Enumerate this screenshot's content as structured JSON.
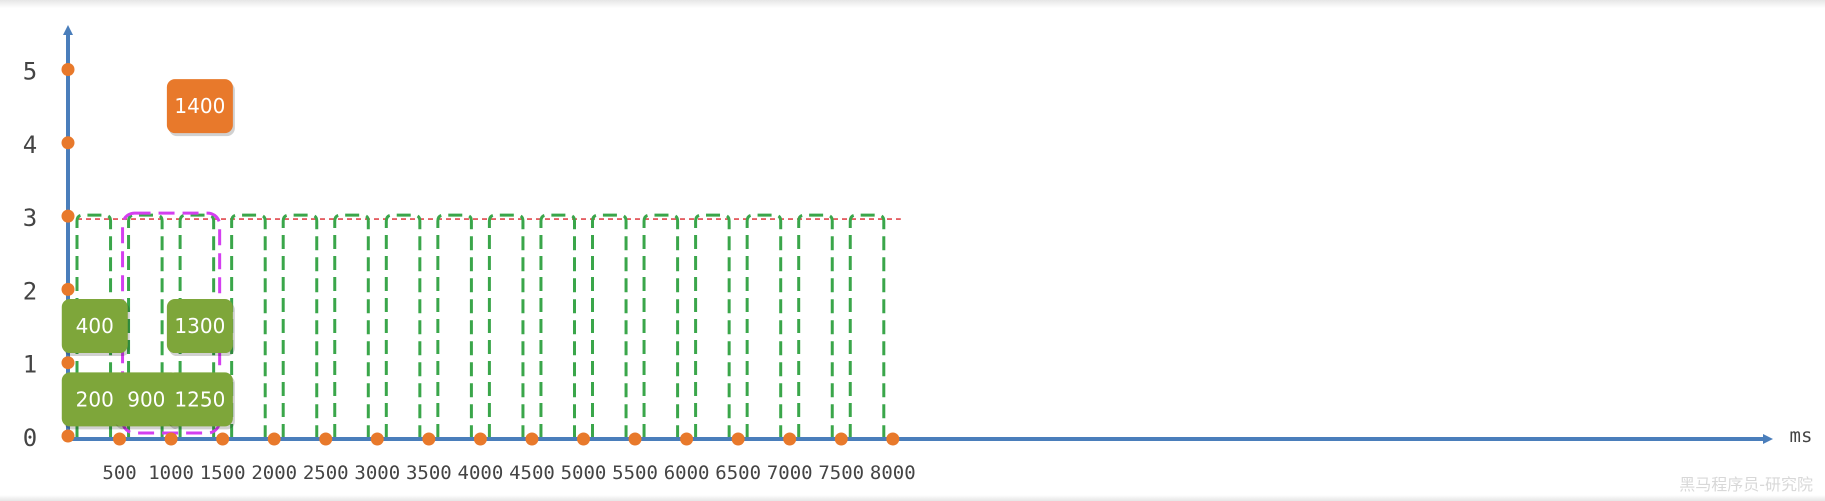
{
  "colors": {
    "axis": "#4a7ebb",
    "dot": "#e8792b",
    "window_border": "#3aa64a",
    "highlight_border": "#d43ff0",
    "limit_line": "#e0474c",
    "green_box": "#7ea63a",
    "orange_box": "#e8792b",
    "text": "#444444"
  },
  "axes": {
    "y_ticks": [
      "0",
      "1",
      "2",
      "3",
      "4",
      "5"
    ],
    "x_ticks": [
      "500",
      "1000",
      "1500",
      "2000",
      "2500",
      "3000",
      "3500",
      "4000",
      "4500",
      "5000",
      "5500",
      "6000",
      "6500",
      "7000",
      "7500",
      "8000"
    ],
    "x_unit": "ms"
  },
  "limit": 3,
  "windows": {
    "count": 16,
    "size_ms": 500,
    "highlight_start_ms": 500,
    "highlight_end_ms": 1500
  },
  "requests": [
    {
      "label": "200",
      "t": 200,
      "slot": 0,
      "status": "accepted"
    },
    {
      "label": "400",
      "t": 400,
      "slot": 1,
      "status": "accepted"
    },
    {
      "label": "900",
      "t": 900,
      "slot": 0,
      "status": "accepted"
    },
    {
      "label": "1250",
      "t": 1250,
      "slot": 0,
      "status": "accepted"
    },
    {
      "label": "1300",
      "t": 1300,
      "slot": 1,
      "status": "accepted"
    },
    {
      "label": "1400",
      "t": 1400,
      "slot": 4,
      "status": "rejected"
    }
  ],
  "watermark": "黑马程序员-研究院"
}
